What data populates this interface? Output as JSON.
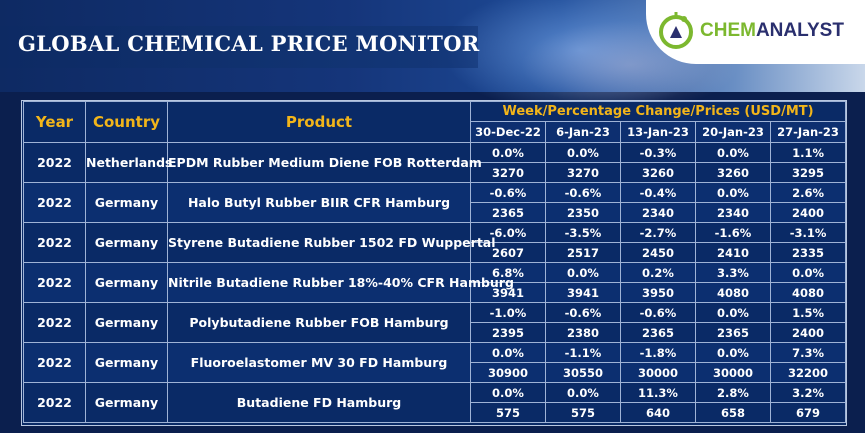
{
  "header": {
    "title": "GLOBAL CHEMICAL PRICE MONITOR",
    "logo": {
      "part1": "CHEM",
      "part2": "ANALYST",
      "icon": "flask-globe-icon",
      "color1": "#7cb82f",
      "color2": "#2a2f6e"
    }
  },
  "table": {
    "headers": {
      "year": "Year",
      "country": "Country",
      "product": "Product",
      "week_group": "Week/Percentage Change/Prices (USD/MT)"
    },
    "dates": [
      "30-Dec-22",
      "6-Jan-23",
      "13-Jan-23",
      "20-Jan-23",
      "27-Jan-23"
    ],
    "rows": [
      {
        "year": "2022",
        "country": "Netherlands",
        "product": "EPDM Rubber Medium Diene FOB Rotterdam",
        "changes": [
          "0.0%",
          "0.0%",
          "-0.3%",
          "0.0%",
          "1.1%"
        ],
        "prices": [
          "3270",
          "3270",
          "3260",
          "3260",
          "3295"
        ]
      },
      {
        "year": "2022",
        "country": "Germany",
        "product": "Halo Butyl Rubber BIIR CFR Hamburg",
        "changes": [
          "-0.6%",
          "-0.6%",
          "-0.4%",
          "0.0%",
          "2.6%"
        ],
        "prices": [
          "2365",
          "2350",
          "2340",
          "2340",
          "2400"
        ]
      },
      {
        "year": "2022",
        "country": "Germany",
        "product": "Styrene Butadiene Rubber 1502 FD Wuppertal",
        "changes": [
          "-6.0%",
          "-3.5%",
          "-2.7%",
          "-1.6%",
          "-3.1%"
        ],
        "prices": [
          "2607",
          "2517",
          "2450",
          "2410",
          "2335"
        ]
      },
      {
        "year": "2022",
        "country": "Germany",
        "product": "Nitrile Butadiene Rubber 18%-40% CFR Hamburg",
        "changes": [
          "6.8%",
          "0.0%",
          "0.2%",
          "3.3%",
          "0.0%"
        ],
        "prices": [
          "3941",
          "3941",
          "3950",
          "4080",
          "4080"
        ]
      },
      {
        "year": "2022",
        "country": "Germany",
        "product": "Polybutadiene Rubber FOB Hamburg",
        "changes": [
          "-1.0%",
          "-0.6%",
          "-0.6%",
          "0.0%",
          "1.5%"
        ],
        "prices": [
          "2395",
          "2380",
          "2365",
          "2365",
          "2400"
        ]
      },
      {
        "year": "2022",
        "country": "Germany",
        "product": "Fluoroelastomer MV 30 FD Hamburg",
        "changes": [
          "0.0%",
          "-1.1%",
          "-1.8%",
          "0.0%",
          "7.3%"
        ],
        "prices": [
          "30900",
          "30550",
          "30000",
          "30000",
          "32200"
        ]
      },
      {
        "year": "2022",
        "country": "Germany",
        "product": "Butadiene FD Hamburg",
        "changes": [
          "0.0%",
          "0.0%",
          "11.3%",
          "2.8%",
          "3.2%"
        ],
        "prices": [
          "575",
          "575",
          "640",
          "658",
          "679"
        ]
      }
    ]
  },
  "colors": {
    "header_accent": "#f2b51a",
    "background": "#0a2a66",
    "grid": "#9fb3d6"
  }
}
